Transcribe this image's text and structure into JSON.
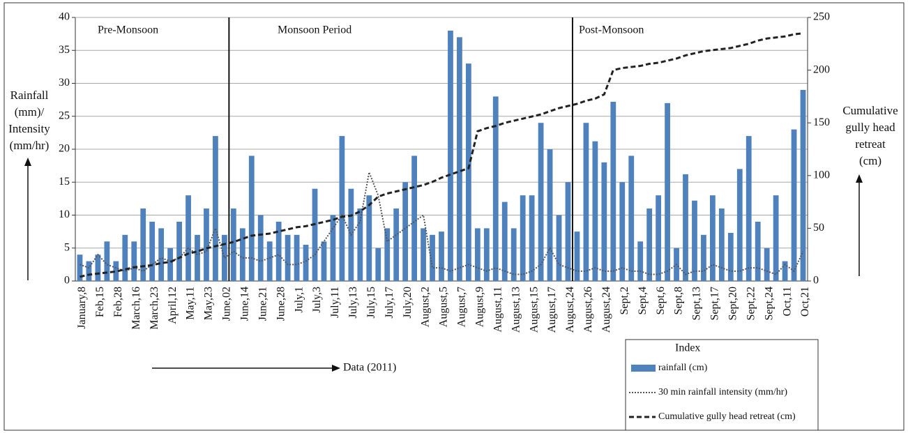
{
  "chart_data": {
    "type": "bar",
    "y_label": [
      "Rainfall",
      "(mm)/",
      "Intensity",
      "(mm/hr)"
    ],
    "y2_label": [
      "Cumulative",
      "gully head",
      "retreat",
      "(cm)"
    ],
    "x_label": "Data (2011)",
    "periods": [
      "Pre-Monsoon",
      "Monsoon Period",
      "Post-Monsoon"
    ],
    "legend_title": "Index",
    "categories": [
      "January,8",
      null,
      "Feb,15",
      null,
      "Feb,28",
      null,
      "March,16",
      null,
      "March,23",
      null,
      "April,12",
      null,
      "May,11",
      null,
      "May,23",
      null,
      "June,02",
      null,
      "June,14",
      null,
      "June,21",
      null,
      "June,28",
      null,
      "July,1",
      null,
      "July,3",
      null,
      "July,11",
      null,
      "July,13",
      null,
      "July,15",
      null,
      "July,17",
      null,
      "July,20",
      null,
      "August,2",
      null,
      "August,5",
      null,
      "August,7",
      null,
      "August,9",
      null,
      "August,11",
      null,
      "August,13",
      null,
      "August,15",
      null,
      "August,17",
      null,
      "August,24",
      null,
      "August,26",
      null,
      "August,24",
      null,
      "Sept,2",
      null,
      "Sept,4",
      null,
      "Sept,6",
      null,
      "Sept,8",
      null,
      "Sept,13",
      null,
      "Sept,17",
      null,
      "Sept,20",
      null,
      "Sept,22",
      null,
      "Sept,24",
      null,
      "Oct,11",
      null,
      "Oct,21"
    ],
    "series": [
      {
        "name": "rainfall (cm)",
        "type": "bar",
        "color": "#4f81bd",
        "values": [
          4,
          3,
          4,
          6,
          3,
          7,
          6,
          11,
          9,
          8,
          5,
          9,
          13,
          7,
          11,
          22,
          7,
          11,
          8,
          19,
          10,
          6,
          9,
          7,
          7,
          5.5,
          14,
          6,
          10,
          22,
          14,
          11,
          13,
          5,
          8,
          11,
          15,
          19,
          8,
          7,
          7.5,
          38,
          37,
          33,
          8,
          8,
          28,
          12,
          8,
          13,
          13,
          24,
          20,
          10,
          15,
          7.5,
          24,
          21.2,
          18,
          27.2,
          15,
          19,
          6,
          11,
          13,
          27,
          5,
          16.2,
          12.2,
          7,
          13,
          11,
          7.3,
          17,
          22,
          9,
          5,
          13,
          3,
          23,
          29
        ]
      },
      {
        "name": "30 min rainfall intensity (mm/hr)",
        "type": "dotted",
        "color": "#555555",
        "values": [
          2.5,
          2,
          4,
          2.5,
          2,
          1.5,
          2,
          1.5,
          2.5,
          3.5,
          3,
          3.5,
          5,
          4,
          4.5,
          8,
          3.5,
          4.5,
          3.5,
          3.5,
          3,
          3.5,
          4,
          2.5,
          2.5,
          3,
          4,
          6,
          8,
          10,
          7,
          9,
          16.5,
          13,
          6,
          7,
          8,
          9,
          10,
          2,
          2,
          1.5,
          2,
          2.5,
          2,
          1.5,
          2,
          1.5,
          1,
          1,
          1.5,
          2.5,
          5,
          2.5,
          2,
          1.5,
          1.5,
          2,
          1.5,
          1.5,
          2,
          1.5,
          1.5,
          1,
          1,
          1.5,
          2.5,
          1,
          1.5,
          1.5,
          2.5,
          2,
          1.5,
          1.5,
          2,
          2,
          1.5,
          1,
          2.5,
          1.5,
          4.5
        ]
      },
      {
        "name": "Cumulative gully head retreat (cm)",
        "type": "dashed",
        "color": "#222222",
        "axis": "y2",
        "values": [
          4,
          6,
          7,
          8,
          9,
          11,
          13,
          14,
          15,
          17,
          18,
          22,
          26,
          28,
          31,
          33,
          35,
          37,
          40,
          43,
          44,
          45,
          47,
          49,
          51,
          52,
          54,
          56,
          58,
          61,
          62,
          66,
          72,
          80,
          83,
          85,
          87,
          89,
          91,
          94,
          98,
          101,
          104,
          107,
          142,
          145,
          147,
          150,
          152,
          154,
          156,
          158,
          161,
          164,
          166,
          168,
          171,
          173,
          177,
          200,
          202,
          203,
          204,
          206,
          207,
          209,
          211,
          214,
          216,
          218,
          219,
          220,
          221,
          223,
          225,
          228,
          230,
          231,
          232,
          234,
          235
        ]
      }
    ],
    "ylim": [
      0,
      40
    ],
    "yticks": [
      0,
      5,
      10,
      15,
      20,
      25,
      30,
      35,
      40
    ],
    "y2lim": [
      0,
      250
    ],
    "y2ticks": [
      0,
      50,
      100,
      150,
      200,
      250
    ],
    "grid": true
  }
}
